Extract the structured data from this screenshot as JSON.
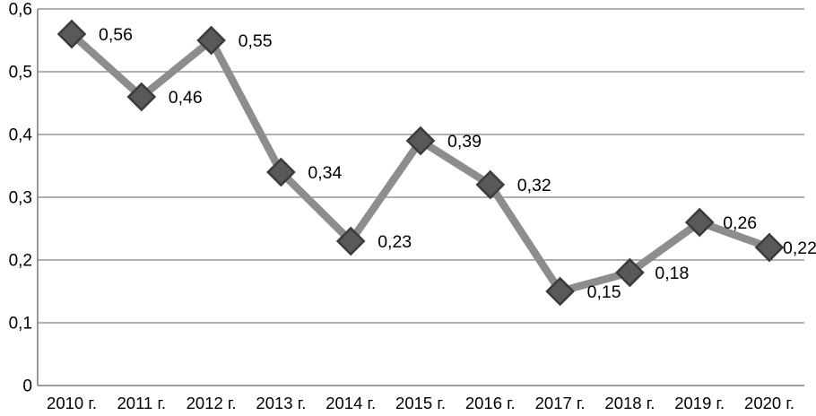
{
  "chart_data": {
    "type": "line",
    "title": "",
    "xlabel": "",
    "ylabel": "",
    "categories": [
      "2010 г.",
      "2011 г.",
      "2012 г.",
      "2013 г.",
      "2014 г.",
      "2015 г.",
      "2016 г.",
      "2017 г.",
      "2018 г.",
      "2019 г.",
      "2020 г."
    ],
    "series": [
      {
        "name": "series-1",
        "values": [
          0.56,
          0.46,
          0.55,
          0.34,
          0.23,
          0.39,
          0.32,
          0.15,
          0.18,
          0.26,
          0.22
        ],
        "point_labels": [
          "0,56",
          "0,46",
          "0,55",
          "0,34",
          "0,23",
          "0,39",
          "0,32",
          "0,15",
          "0,18",
          "0,26",
          "0,22"
        ],
        "point_label_dx": [
          30,
          30,
          30,
          30,
          30,
          30,
          30,
          30,
          28,
          26,
          15
        ]
      }
    ],
    "ylim": [
      0,
      0.6
    ],
    "y_ticks": [
      0.6,
      0.5,
      0.4,
      0.3,
      0.2,
      0.1,
      0
    ],
    "y_tick_labels": [
      "0,6",
      "0,5",
      "0,4",
      "0,3",
      "0,2",
      "0,1",
      "0"
    ],
    "grid": true,
    "legend_position": "none",
    "colors": {
      "line": "#8d8d8d",
      "marker_fill": "#595959",
      "marker_stroke": "#3c3c3c",
      "gridline": "#7f7f7f",
      "axis": "#7f7f7f",
      "text": "#000000",
      "background": "#ffffff"
    }
  }
}
